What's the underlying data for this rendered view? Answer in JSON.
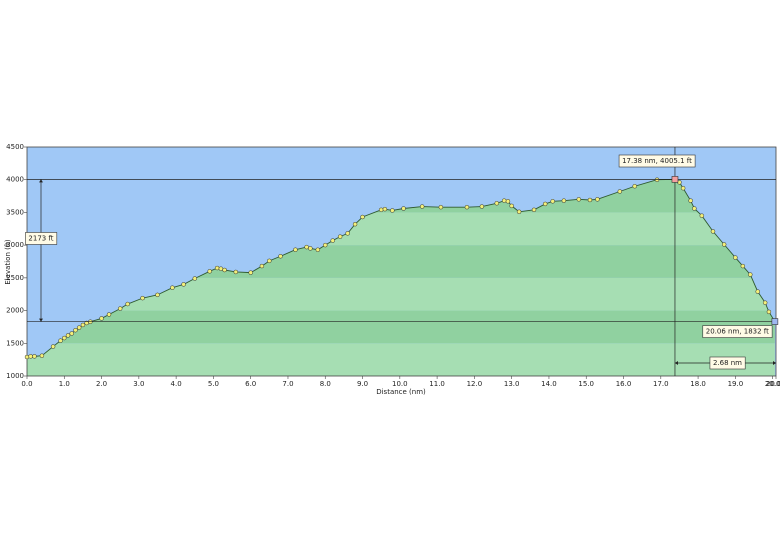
{
  "chart_data": {
    "type": "area",
    "x_label": "Distance  (nm)",
    "y_label": "Elevation (ft)",
    "xlim": [
      0,
      20.09
    ],
    "ylim": [
      1000,
      4500
    ],
    "xticks": [
      {
        "value": 0,
        "label": "0.0"
      },
      {
        "value": 1,
        "label": "1.0"
      },
      {
        "value": 2,
        "label": "2.0"
      },
      {
        "value": 3,
        "label": "3.0"
      },
      {
        "value": 4,
        "label": "4.0"
      },
      {
        "value": 5,
        "label": "5.0"
      },
      {
        "value": 6,
        "label": "6.0"
      },
      {
        "value": 7,
        "label": "7.0"
      },
      {
        "value": 8,
        "label": "8.0"
      },
      {
        "value": 9,
        "label": "9.0"
      },
      {
        "value": 10,
        "label": "10.0"
      },
      {
        "value": 11,
        "label": "11.0"
      },
      {
        "value": 12,
        "label": "12.0"
      },
      {
        "value": 13,
        "label": "13.0"
      },
      {
        "value": 14,
        "label": "14.0"
      },
      {
        "value": 15,
        "label": "15.0"
      },
      {
        "value": 16,
        "label": "16.0"
      },
      {
        "value": 17,
        "label": "17.0"
      },
      {
        "value": 18,
        "label": "18.0"
      },
      {
        "value": 19,
        "label": "19.0"
      },
      {
        "value": 20,
        "label": "20.0"
      },
      20.09
    ],
    "yticks": [
      1000,
      1500,
      2000,
      2500,
      3000,
      3500,
      4000,
      4500
    ],
    "background_color": "#a0c8f6",
    "band_colors": [
      "#a6deb3",
      "#90d1a0"
    ],
    "line_color": "#2f5a2f",
    "marker_color": "#f3f07a",
    "x": [
      0,
      0.1,
      0.2,
      0.4,
      0.7,
      0.9,
      1.0,
      1.1,
      1.2,
      1.3,
      1.4,
      1.5,
      1.6,
      1.7,
      2.0,
      2.2,
      2.5,
      2.7,
      3.1,
      3.5,
      3.9,
      4.2,
      4.5,
      4.9,
      5.1,
      5.2,
      5.3,
      5.6,
      6.0,
      6.3,
      6.5,
      6.8,
      7.2,
      7.5,
      7.6,
      7.8,
      8.0,
      8.2,
      8.4,
      8.6,
      8.8,
      9.0,
      9.5,
      9.6,
      9.8,
      10.1,
      10.6,
      11.1,
      11.8,
      12.2,
      12.6,
      12.8,
      12.9,
      13.0,
      13.2,
      13.6,
      13.9,
      14.1,
      14.4,
      14.8,
      15.1,
      15.3,
      15.9,
      16.3,
      16.9,
      17.38,
      17.5,
      17.6,
      17.8,
      17.9,
      18.1,
      18.4,
      18.7,
      19.0,
      19.2,
      19.4,
      19.6,
      19.8,
      19.9,
      20.06
    ],
    "values": [
      1290,
      1300,
      1300,
      1310,
      1450,
      1540,
      1580,
      1620,
      1650,
      1700,
      1740,
      1780,
      1810,
      1830,
      1880,
      1940,
      2030,
      2100,
      2190,
      2240,
      2350,
      2400,
      2490,
      2600,
      2650,
      2640,
      2620,
      2590,
      2580,
      2680,
      2760,
      2830,
      2930,
      2970,
      2950,
      2930,
      3000,
      3070,
      3130,
      3180,
      3320,
      3430,
      3540,
      3550,
      3530,
      3560,
      3590,
      3580,
      3580,
      3590,
      3640,
      3680,
      3670,
      3600,
      3510,
      3540,
      3630,
      3670,
      3680,
      3700,
      3690,
      3700,
      3820,
      3900,
      4000,
      4005.1,
      3960,
      3870,
      3680,
      3560,
      3450,
      3210,
      3010,
      2810,
      2680,
      2550,
      2290,
      2120,
      1980,
      1832
    ],
    "markers": [
      {
        "x": 17.38,
        "y": 4005.1,
        "label": "17.38 nm, 4005.1 ft",
        "color": "#f4a0a0"
      },
      {
        "x": 20.06,
        "y": 1832,
        "label": "20.06 nm, 1832 ft",
        "color": "#9fb8f0"
      }
    ],
    "vertical_measure": {
      "label": "2173 ft"
    },
    "horizontal_measure": {
      "label": "2.68 nm"
    }
  }
}
